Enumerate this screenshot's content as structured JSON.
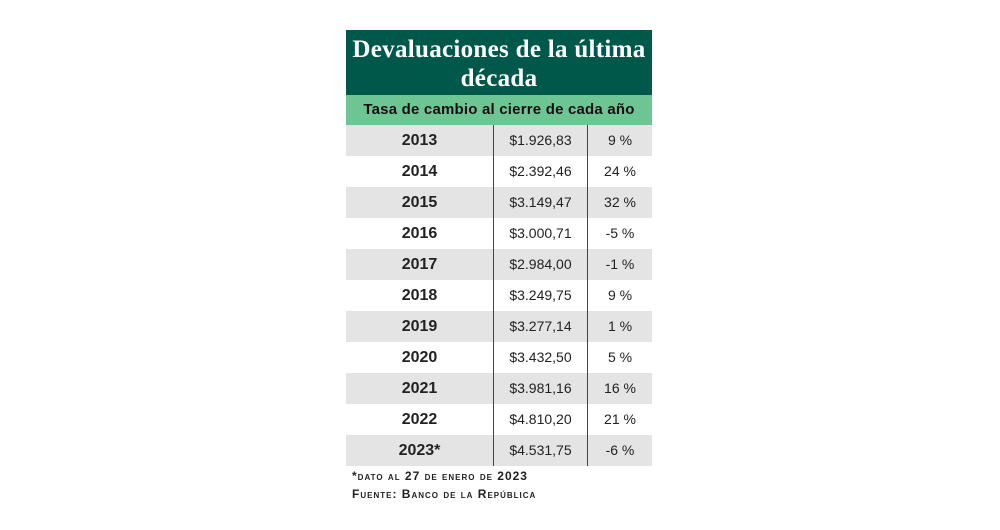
{
  "chart_data": {
    "type": "table",
    "title": "Devaluaciones de la última década",
    "subtitle": "Tasa de cambio al cierre de cada año",
    "rows": [
      {
        "year": "2013",
        "rate": "$1.926,83",
        "change": "9 %"
      },
      {
        "year": "2014",
        "rate": "$2.392,46",
        "change": "24 %"
      },
      {
        "year": "2015",
        "rate": "$3.149,47",
        "change": "32 %"
      },
      {
        "year": "2016",
        "rate": "$3.000,71",
        "change": "-5 %"
      },
      {
        "year": "2017",
        "rate": "$2.984,00",
        "change": "-1 %"
      },
      {
        "year": "2018",
        "rate": "$3.249,75",
        "change": "9 %"
      },
      {
        "year": "2019",
        "rate": "$3.277,14",
        "change": "1 %"
      },
      {
        "year": "2020",
        "rate": "$3.432,50",
        "change": "5 %"
      },
      {
        "year": "2021",
        "rate": "$3.981,16",
        "change": "16 %"
      },
      {
        "year": "2022",
        "rate": "$4.810,20",
        "change": "21 %"
      },
      {
        "year": "2023*",
        "rate": "$4.531,75",
        "change": "-6 %"
      }
    ],
    "footnote": "*dato al 27 de enero de 2023",
    "source": "Fuente: Banco de la República",
    "colors": {
      "header": "#00584a",
      "subheader": "#6cc593",
      "stripe": "#e4e4e4"
    }
  }
}
